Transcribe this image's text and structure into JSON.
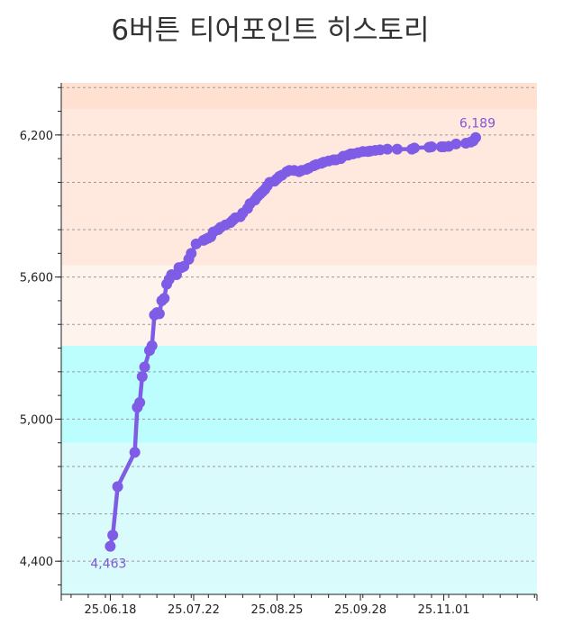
{
  "chart_data": {
    "type": "line",
    "title": "6버튼 티어포인트 히스토리",
    "xlabel": "",
    "ylabel": "",
    "x_ticks": [
      "25.06.18",
      "25.07.22",
      "25.08.25",
      "25.09.28",
      "25.11.01"
    ],
    "y_ticks": [
      "4,400",
      "5,000",
      "5,600",
      "6,200"
    ],
    "ylim": [
      4260,
      6420
    ],
    "xlim": [
      "2025-05-29",
      "2025-12-09"
    ],
    "grid": true,
    "annotations": [
      "4,463",
      "6,189"
    ],
    "colors": {
      "line": "#7e5ce6",
      "label": "#8058d8",
      "bands": [
        {
          "from": 4260,
          "to": 4300,
          "color": "#d9fdfd"
        },
        {
          "from": 4300,
          "to": 4900,
          "color": "#d9fbfc"
        },
        {
          "from": 4900,
          "to": 5310,
          "color": "#bcfdfd"
        },
        {
          "from": 5310,
          "to": 5650,
          "color": "#fff3ee"
        },
        {
          "from": 5650,
          "to": 6310,
          "color": "#ffe8dd"
        },
        {
          "from": 6310,
          "to": 6420,
          "color": "#ffe0d1"
        }
      ]
    },
    "series": [
      {
        "x": [
          "2025-06-18",
          "2025-06-19",
          "2025-06-21",
          "2025-06-28",
          "2025-06-29",
          "2025-06-30",
          "2025-07-01",
          "2025-07-02",
          "2025-07-04",
          "2025-07-05",
          "2025-07-06",
          "2025-07-07",
          "2025-07-08",
          "2025-07-09",
          "2025-07-10",
          "2025-07-11",
          "2025-07-12",
          "2025-07-13",
          "2025-07-15",
          "2025-07-16",
          "2025-07-17",
          "2025-07-18",
          "2025-07-20",
          "2025-07-21",
          "2025-07-23",
          "2025-07-26",
          "2025-07-27",
          "2025-07-28",
          "2025-07-29",
          "2025-07-30",
          "2025-08-01",
          "2025-08-02",
          "2025-08-04",
          "2025-08-06",
          "2025-08-07",
          "2025-08-08",
          "2025-08-10",
          "2025-08-11",
          "2025-08-13",
          "2025-08-14",
          "2025-08-16",
          "2025-08-17",
          "2025-08-18",
          "2025-08-19",
          "2025-08-20",
          "2025-08-21",
          "2025-08-22",
          "2025-08-24",
          "2025-08-25",
          "2025-08-26",
          "2025-08-27",
          "2025-08-29",
          "2025-08-30",
          "2025-09-01",
          "2025-09-03",
          "2025-09-04",
          "2025-09-06",
          "2025-09-07",
          "2025-09-09",
          "2025-09-10",
          "2025-09-12",
          "2025-09-13",
          "2025-09-15",
          "2025-09-17",
          "2025-09-18",
          "2025-09-20",
          "2025-09-21",
          "2025-09-23",
          "2025-09-24",
          "2025-09-25",
          "2025-09-27",
          "2025-09-29",
          "2025-10-01",
          "2025-10-02",
          "2025-10-04",
          "2025-10-06",
          "2025-10-09",
          "2025-10-13",
          "2025-10-19",
          "2025-10-20",
          "2025-10-26",
          "2025-10-27",
          "2025-10-31",
          "2025-11-01",
          "2025-11-03",
          "2025-11-06",
          "2025-11-10",
          "2025-11-12",
          "2025-11-13",
          "2025-11-14"
        ],
        "y": [
          4463,
          4510,
          4715,
          4860,
          5050,
          5070,
          5180,
          5220,
          5290,
          5310,
          5440,
          5450,
          5445,
          5500,
          5510,
          5570,
          5590,
          5610,
          5610,
          5640,
          5640,
          5645,
          5675,
          5700,
          5740,
          5755,
          5760,
          5765,
          5770,
          5790,
          5800,
          5810,
          5820,
          5830,
          5840,
          5850,
          5855,
          5870,
          5890,
          5910,
          5925,
          5940,
          5950,
          5960,
          5970,
          5985,
          6000,
          6005,
          6015,
          6025,
          6030,
          6045,
          6050,
          6050,
          6045,
          6050,
          6055,
          6060,
          6070,
          6075,
          6080,
          6085,
          6090,
          6095,
          6095,
          6100,
          6110,
          6115,
          6120,
          6120,
          6125,
          6130,
          6130,
          6132,
          6135,
          6137,
          6140,
          6140,
          6140,
          6145,
          6148,
          6150,
          6150,
          6150,
          6152,
          6162,
          6165,
          6170,
          6175,
          6189
        ]
      }
    ]
  }
}
